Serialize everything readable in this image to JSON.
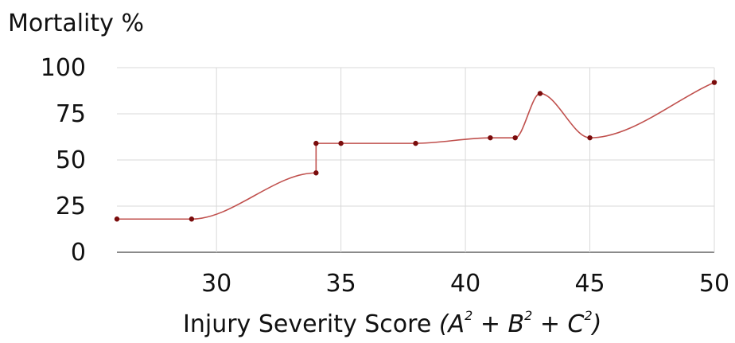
{
  "chart_data": {
    "type": "line",
    "ylabel": "Mortality %",
    "xlabel": {
      "prefix": "Injury Severity Score ",
      "a": "A",
      "b": "B",
      "c": "C",
      "exp": "2",
      "plus": "+ "
    },
    "xlim": [
      26,
      50
    ],
    "ylim": [
      0,
      100
    ],
    "x_ticks": [
      30,
      35,
      40,
      45,
      50
    ],
    "y_ticks": [
      0,
      25,
      50,
      75,
      100
    ],
    "grid": true,
    "series": [
      {
        "color": "#c0504d",
        "marker_color": "#7a0c0c",
        "points": [
          [
            26,
            18
          ],
          [
            29,
            18
          ],
          [
            34,
            43
          ],
          [
            34,
            59
          ],
          [
            35,
            59
          ],
          [
            38,
            59
          ],
          [
            41,
            62
          ],
          [
            42,
            62
          ],
          [
            43,
            86
          ],
          [
            45,
            62
          ],
          [
            50,
            92
          ]
        ]
      }
    ]
  }
}
